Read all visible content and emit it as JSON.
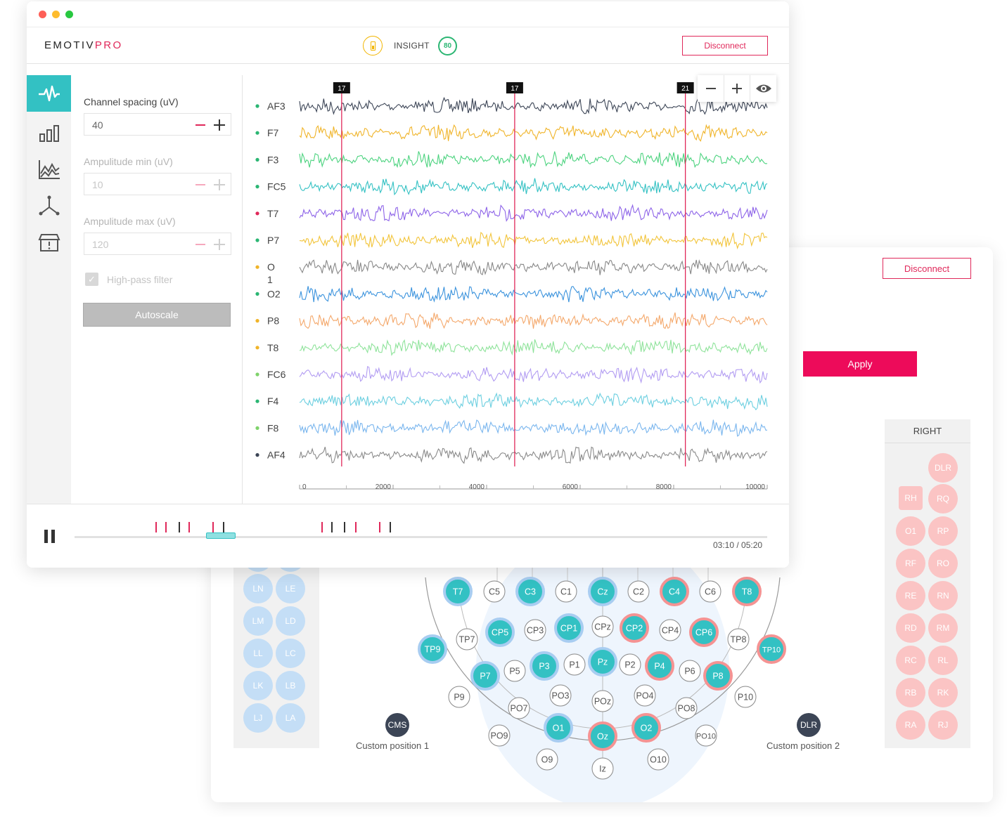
{
  "app": {
    "brand_main": "EMOTIV",
    "brand_accent": "PRO"
  },
  "header": {
    "device": "INSIGHT",
    "signal_quality": "80",
    "disconnect_label": "Disconnect"
  },
  "settings": {
    "spacing_label": "Channel spacing (uV)",
    "spacing_value": "40",
    "amp_min_label": "Ampulitude min (uV)",
    "amp_min_value": "10",
    "amp_max_label": "Ampulitude max (uV)",
    "amp_max_value": "120",
    "highpass_label": "High-pass filter",
    "autoscale_label": "Autoscale"
  },
  "channels": [
    {
      "name": "AF3",
      "color": "#3c4556",
      "dot": "#2bb673"
    },
    {
      "name": "F7",
      "color": "#f0b429",
      "dot": "#2bb673"
    },
    {
      "name": "F3",
      "color": "#4cd37f",
      "dot": "#2bb673"
    },
    {
      "name": "FC5",
      "color": "#33c1c3",
      "dot": "#2bb673"
    },
    {
      "name": "T7",
      "color": "#8d63e8",
      "dot": "#e0285a"
    },
    {
      "name": "P7",
      "color": "#f2c43a",
      "dot": "#2bb673"
    },
    {
      "name": "O\n1",
      "color": "#888888",
      "dot": "#f0b429"
    },
    {
      "name": "O2",
      "color": "#3b93dd",
      "dot": "#2bb673"
    },
    {
      "name": "P8",
      "color": "#f4a86b",
      "dot": "#f0b429"
    },
    {
      "name": "T8",
      "color": "#8ee39a",
      "dot": "#f0b429"
    },
    {
      "name": "FC6",
      "color": "#b29cf2",
      "dot": "#7fd36b"
    },
    {
      "name": "F4",
      "color": "#6ccfe0",
      "dot": "#2bb673"
    },
    {
      "name": "F8",
      "color": "#7ab6ee",
      "dot": "#7fd36b"
    },
    {
      "name": "AF4",
      "color": "#8a8a8a",
      "dot": "#3c4556"
    }
  ],
  "markers": [
    {
      "label": "17",
      "at": 900
    },
    {
      "label": "17",
      "at": 4600
    },
    {
      "label": "21",
      "at": 8250
    }
  ],
  "x_axis": {
    "ticks": [
      "0",
      "2000",
      "4000",
      "6000",
      "8000",
      "10000"
    ],
    "range": [
      0,
      10000
    ]
  },
  "timeline": {
    "current": "03:10 / 05:20",
    "progress": 0.19
  },
  "electrode_map": {
    "disconnect_label": "Disconnect",
    "apply_label": "Apply",
    "right_header": "RIGHT",
    "left_refs": [
      "LN",
      "LE",
      "LM",
      "LD",
      "LL",
      "LC",
      "LK",
      "LB",
      "LJ",
      "LA"
    ],
    "right_refs": [
      "DLR",
      "RH",
      "RQ",
      "O1",
      "RP",
      "RF",
      "RO",
      "RE",
      "RN",
      "RD",
      "RM",
      "RC",
      "RL",
      "RB",
      "RK",
      "RA",
      "RJ"
    ],
    "cms_label": "CMS",
    "cms_caption": "Custom position 1",
    "dlr_label": "DLR",
    "dlr_caption": "Custom position 2",
    "electrodes": [
      {
        "name": "T7",
        "state": "blue"
      },
      {
        "name": "C5",
        "state": "off"
      },
      {
        "name": "C3",
        "state": "blue"
      },
      {
        "name": "C1",
        "state": "off"
      },
      {
        "name": "Cz",
        "state": "blue"
      },
      {
        "name": "C2",
        "state": "off"
      },
      {
        "name": "C4",
        "state": "red"
      },
      {
        "name": "C6",
        "state": "off"
      },
      {
        "name": "T8",
        "state": "red"
      },
      {
        "name": "TP7",
        "state": "off"
      },
      {
        "name": "CP5",
        "state": "blue"
      },
      {
        "name": "CP3",
        "state": "off"
      },
      {
        "name": "CP1",
        "state": "blue"
      },
      {
        "name": "CPz",
        "state": "off"
      },
      {
        "name": "CP2",
        "state": "red"
      },
      {
        "name": "CP4",
        "state": "off"
      },
      {
        "name": "CP6",
        "state": "red"
      },
      {
        "name": "TP8",
        "state": "off"
      },
      {
        "name": "TP9",
        "state": "blue"
      },
      {
        "name": "TP10",
        "state": "red"
      },
      {
        "name": "P7",
        "state": "blue"
      },
      {
        "name": "P5",
        "state": "off"
      },
      {
        "name": "P3",
        "state": "blue"
      },
      {
        "name": "P1",
        "state": "off"
      },
      {
        "name": "Pz",
        "state": "blue"
      },
      {
        "name": "P2",
        "state": "off"
      },
      {
        "name": "P4",
        "state": "red"
      },
      {
        "name": "P6",
        "state": "off"
      },
      {
        "name": "P8",
        "state": "red"
      },
      {
        "name": "P9",
        "state": "off"
      },
      {
        "name": "PO7",
        "state": "off"
      },
      {
        "name": "PO3",
        "state": "off"
      },
      {
        "name": "POz",
        "state": "off"
      },
      {
        "name": "PO4",
        "state": "off"
      },
      {
        "name": "PO8",
        "state": "off"
      },
      {
        "name": "P10",
        "state": "off"
      },
      {
        "name": "O1",
        "state": "blue"
      },
      {
        "name": "Oz",
        "state": "red"
      },
      {
        "name": "O2",
        "state": "red"
      },
      {
        "name": "PO9",
        "state": "off"
      },
      {
        "name": "PO10",
        "state": "off"
      },
      {
        "name": "O9",
        "state": "off"
      },
      {
        "name": "O10",
        "state": "off"
      },
      {
        "name": "Iz",
        "state": "off"
      }
    ]
  },
  "colors": {
    "accent": "#e0285a",
    "teal": "#33c1c3"
  }
}
